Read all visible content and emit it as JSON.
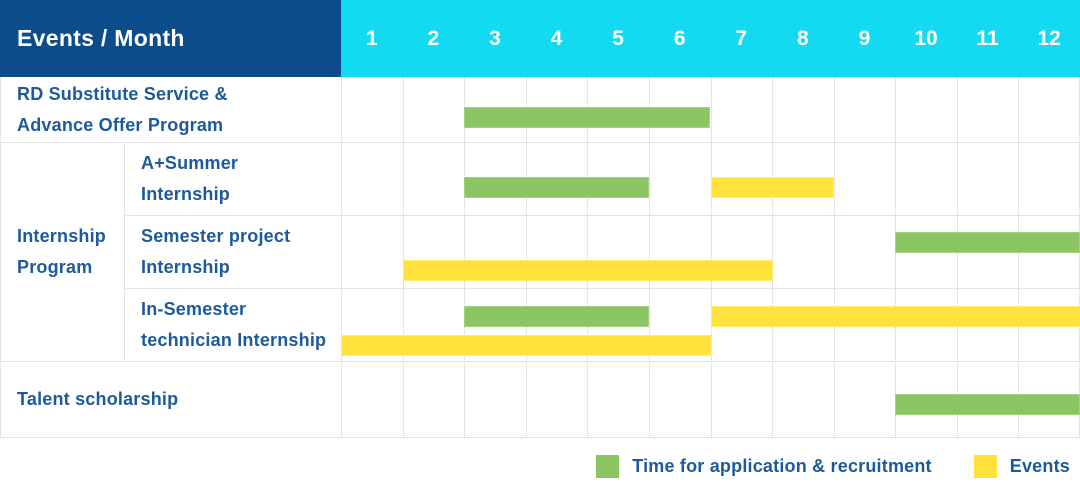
{
  "title": {
    "events_month": "Events / Month"
  },
  "months": [
    "1",
    "2",
    "3",
    "4",
    "5",
    "6",
    "7",
    "8",
    "9",
    "10",
    "11",
    "12"
  ],
  "colors": {
    "header_navy": "#0c4c8a",
    "header_cyan": "#12daf0",
    "bar_green": "#8bc564",
    "bar_yellow": "#ffe33c",
    "text_blue": "#1d5a9c"
  },
  "group_cell": {
    "label_lines": [
      "Internship",
      "Program"
    ]
  },
  "rows": [
    {
      "name": "rd-substitute-service-advance-offer-program",
      "label_lines": [
        "RD Substitute Service &",
        "Advance Offer Program"
      ],
      "bars": [
        {
          "color": "green",
          "start": 3,
          "end": 6,
          "level": "single"
        }
      ]
    },
    {
      "name": "a-plus-summer-internship",
      "label_lines": [
        "A+Summer",
        "Internship"
      ],
      "bars": [
        {
          "color": "green",
          "start": 3,
          "end": 5,
          "level": "single"
        },
        {
          "color": "yellow",
          "start": 7,
          "end": 8,
          "level": "single"
        }
      ]
    },
    {
      "name": "semester-project-internship",
      "label_lines": [
        "Semester project",
        "Internship"
      ],
      "bars": [
        {
          "color": "green",
          "start": 10,
          "end": 12,
          "level": "top"
        },
        {
          "color": "yellow",
          "start": 2,
          "end": 7,
          "level": "bottom"
        }
      ]
    },
    {
      "name": "in-semester-technician-internship",
      "label_lines": [
        "In-Semester",
        "technician Internship"
      ],
      "bars": [
        {
          "color": "green",
          "start": 3,
          "end": 5,
          "level": "top"
        },
        {
          "color": "yellow",
          "start": 7,
          "end": 12,
          "level": "top"
        },
        {
          "color": "yellow",
          "start": 1,
          "end": 6,
          "level": "bottom"
        }
      ]
    },
    {
      "name": "talent-scholarship",
      "label_lines": [
        "Talent scholarship"
      ],
      "bars": [
        {
          "color": "green",
          "start": 10,
          "end": 12,
          "level": "single"
        }
      ]
    }
  ],
  "legend": [
    {
      "color": "green",
      "label": "Time for application & recruitment"
    },
    {
      "color": "yellow",
      "label": "Events"
    }
  ],
  "chart_data": {
    "type": "gantt",
    "title": "Events / Month",
    "x_axis": {
      "label": "Month",
      "ticks": [
        1,
        2,
        3,
        4,
        5,
        6,
        7,
        8,
        9,
        10,
        11,
        12
      ],
      "range": [
        1,
        12
      ]
    },
    "legend_entries": [
      {
        "name": "Time for application & recruitment",
        "color": "#8bc564"
      },
      {
        "name": "Events",
        "color": "#ffe33c"
      }
    ],
    "tasks": [
      {
        "row": "RD Substitute Service & Advance Offer Program",
        "group": null,
        "spans": [
          {
            "type": "Time for application & recruitment",
            "months": [
              3,
              6
            ]
          }
        ]
      },
      {
        "row": "A+Summer Internship",
        "group": "Internship Program",
        "spans": [
          {
            "type": "Time for application & recruitment",
            "months": [
              3,
              5
            ]
          },
          {
            "type": "Events",
            "months": [
              7,
              8
            ]
          }
        ]
      },
      {
        "row": "Semester project Internship",
        "group": "Internship Program",
        "spans": [
          {
            "type": "Time for application & recruitment",
            "months": [
              10,
              12
            ]
          },
          {
            "type": "Events",
            "months": [
              2,
              7
            ]
          }
        ]
      },
      {
        "row": "In-Semester technician Internship",
        "group": "Internship Program",
        "spans": [
          {
            "type": "Time for application & recruitment",
            "months": [
              3,
              5
            ]
          },
          {
            "type": "Events",
            "months": [
              7,
              12
            ]
          },
          {
            "type": "Events",
            "months": [
              1,
              6
            ]
          }
        ]
      },
      {
        "row": "Talent scholarship",
        "group": null,
        "spans": [
          {
            "type": "Time for application & recruitment",
            "months": [
              10,
              12
            ]
          }
        ]
      }
    ],
    "layout_hints": {
      "grid": "dotted vertical month separators, solid row lines",
      "legend_position": "bottom-right"
    }
  }
}
